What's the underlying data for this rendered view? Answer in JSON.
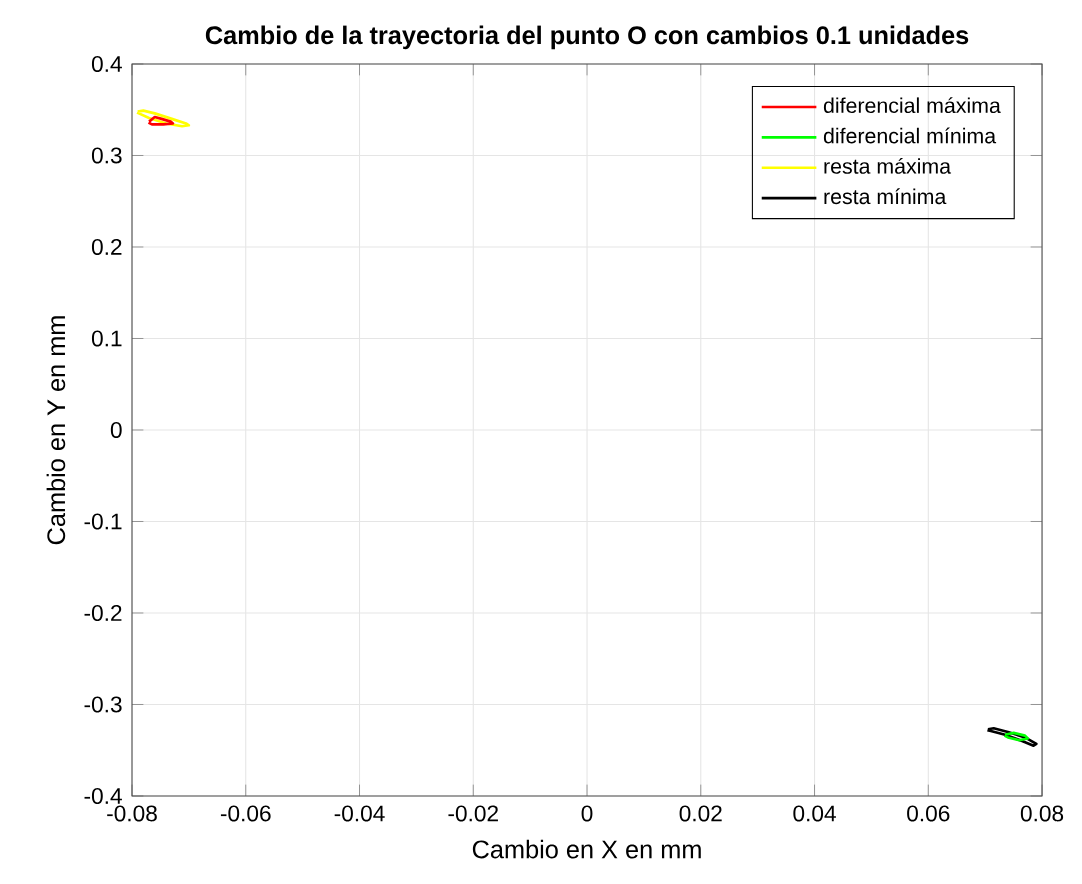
{
  "chart_data": {
    "type": "line",
    "title": "Cambio de la trayectoria del punto O con cambios 0.1 unidades",
    "xlabel": "Cambio en X en mm",
    "ylabel": "Cambio en Y en mm",
    "xlim": [
      -0.08,
      0.08
    ],
    "ylim": [
      -0.4,
      0.4
    ],
    "xticks": [
      -0.08,
      -0.06,
      -0.04,
      -0.02,
      0,
      0.02,
      0.04,
      0.06,
      0.08
    ],
    "yticks": [
      -0.4,
      -0.3,
      -0.2,
      -0.1,
      0,
      0.1,
      0.2,
      0.3,
      0.4
    ],
    "grid": true,
    "legend": "top right",
    "marker": "none",
    "line_style": "solid",
    "series": [
      {
        "name": "diferencial máxima",
        "color": "#ff0000",
        "x": [
          -0.077,
          -0.076,
          -0.0748,
          -0.0732,
          -0.0728,
          -0.0745,
          -0.0765,
          -0.0771
        ],
        "values": [
          0.337,
          0.342,
          0.34,
          0.337,
          0.335,
          0.334,
          0.334,
          0.336
        ]
      },
      {
        "name": "diferencial mínima",
        "color": "#00ff00",
        "x": [
          0.0735,
          0.075,
          0.077,
          0.0775,
          0.076,
          0.074,
          0.0734
        ],
        "values": [
          -0.333,
          -0.331,
          -0.334,
          -0.337,
          -0.339,
          -0.336,
          -0.334
        ]
      },
      {
        "name": "resta máxima",
        "color": "#ffff00",
        "x": [
          -0.079,
          -0.078,
          -0.076,
          -0.073,
          -0.0705,
          -0.07,
          -0.0712,
          -0.074,
          -0.077,
          -0.0788,
          -0.0791
        ],
        "values": [
          0.348,
          0.349,
          0.346,
          0.34,
          0.335,
          0.333,
          0.332,
          0.335,
          0.341,
          0.346,
          0.347
        ]
      },
      {
        "name": "resta mínima",
        "color": "#000000",
        "x": [
          0.0705,
          0.0715,
          0.074,
          0.077,
          0.079,
          0.0785,
          0.0765,
          0.0735,
          0.071,
          0.0704
        ],
        "values": [
          -0.327,
          -0.326,
          -0.33,
          -0.336,
          -0.343,
          -0.345,
          -0.34,
          -0.333,
          -0.329,
          -0.328
        ]
      }
    ]
  }
}
